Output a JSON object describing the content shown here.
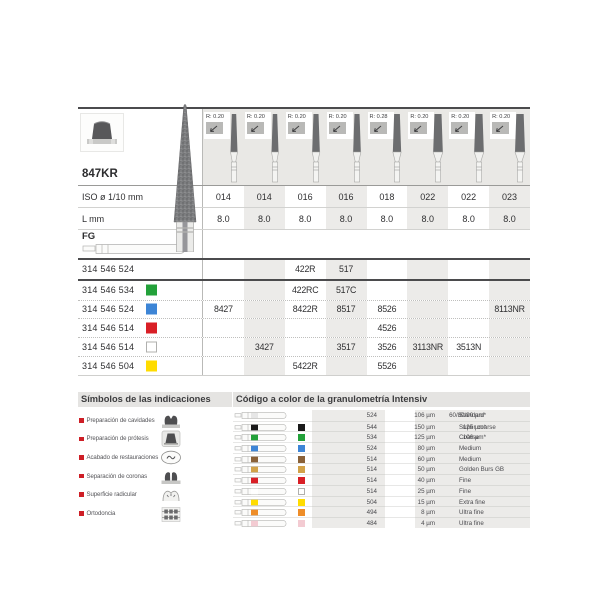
{
  "product": {
    "family": "847KR",
    "iso_label": "ISO ø 1/10 mm",
    "l_label": "L mm",
    "shank_label": "FG",
    "columns": [
      {
        "r": "R: 0.20",
        "iso": "014",
        "l": "8.0"
      },
      {
        "r": "R: 0.20",
        "iso": "014",
        "l": "8.0"
      },
      {
        "r": "R: 0.20",
        "iso": "016",
        "l": "8.0"
      },
      {
        "r": "R: 0.20",
        "iso": "016",
        "l": "8.0"
      },
      {
        "r": "R: 0.28",
        "iso": "018",
        "l": "8.0"
      },
      {
        "r": "R: 0.20",
        "iso": "022",
        "l": "8.0"
      },
      {
        "r": "R: 0.20",
        "iso": "022",
        "l": "8.0"
      },
      {
        "r": "R: 0.20",
        "iso": "023",
        "l": "8.0"
      }
    ]
  },
  "codes": {
    "rows": [
      {
        "number": "314 546 524",
        "chip": null,
        "values": [
          "",
          "",
          "422R",
          "517",
          "",
          "",
          "",
          ""
        ]
      },
      {
        "number": "314 546 534",
        "chip": "#23a13a",
        "values": [
          "",
          "",
          "422RC",
          "517C",
          "",
          "",
          "",
          ""
        ]
      },
      {
        "number": "314 546 524",
        "chip": "#3d85d6",
        "values": [
          "8427",
          "",
          "8422R",
          "8517",
          "8526",
          "",
          "",
          "8113NR"
        ]
      },
      {
        "number": "314 546 514",
        "chip": "#d91f26",
        "values": [
          "",
          "",
          "",
          "",
          "4526",
          "",
          "",
          ""
        ]
      },
      {
        "number": "314 546 514",
        "chip": "#ffffff",
        "values": [
          "",
          "3427",
          "",
          "3517",
          "3526",
          "3113NR",
          "3513N",
          ""
        ]
      },
      {
        "number": "314 546 504",
        "chip": "#ffdc00",
        "values": [
          "",
          "",
          "5422R",
          "",
          "5526",
          "",
          "",
          ""
        ]
      }
    ]
  },
  "symbols": {
    "title": "Símbolos de las indicaciones",
    "bullet_color": "#ce1e26",
    "items": [
      {
        "label": "Preparación de cavidades",
        "icon": "cavity-prep-icon"
      },
      {
        "label": "Preparación de prótesis",
        "icon": "prosthesis-prep-icon"
      },
      {
        "label": "Acabado de restauraciones",
        "icon": "restoration-finish-icon"
      },
      {
        "label": "Separación de coronas",
        "icon": "crown-separation-icon"
      },
      {
        "label": "Superficie radicular",
        "icon": "root-surface-icon"
      },
      {
        "label": "Ortodoncia",
        "icon": "orthodontics-icon"
      }
    ]
  },
  "granulometry": {
    "title": "Código a color de la granulometría Intensiv",
    "rows": [
      {
        "chip": null,
        "code": "524",
        "size": "106 µm",
        "alt": "60/80/90 µm*",
        "name": "Standard"
      },
      {
        "chip": "#1a1a1a",
        "code": "544",
        "size": "150 µm",
        "alt": "125 µm*",
        "name": "Super coarse"
      },
      {
        "chip": "#23a13a",
        "code": "534",
        "size": "125 µm",
        "alt": "106 µm*",
        "name": "Coarse"
      },
      {
        "chip": "#3d85d6",
        "code": "524",
        "size": "80 µm",
        "alt": "",
        "name": "Medium"
      },
      {
        "chip": "#8a6138",
        "code": "514",
        "size": "60 µm",
        "alt": "",
        "name": "Medium"
      },
      {
        "chip": "#d2a249",
        "code": "514",
        "size": "50 µm",
        "alt": "",
        "name": "Golden Burs GB"
      },
      {
        "chip": "#d91f26",
        "code": "514",
        "size": "40 µm",
        "alt": "",
        "name": "Fine"
      },
      {
        "chip": "#ffffff",
        "code": "514",
        "size": "25 µm",
        "alt": "",
        "name": "Fine"
      },
      {
        "chip": "#ffdc00",
        "code": "504",
        "size": "15 µm",
        "alt": "",
        "name": "Extra fine"
      },
      {
        "chip": "#ee8d28",
        "code": "494",
        "size": "8 µm",
        "alt": "",
        "name": "Ultra fine"
      },
      {
        "chip": "#f3cbd2",
        "code": "484",
        "size": "4 µm",
        "alt": "",
        "name": "Ultra fine"
      }
    ]
  }
}
